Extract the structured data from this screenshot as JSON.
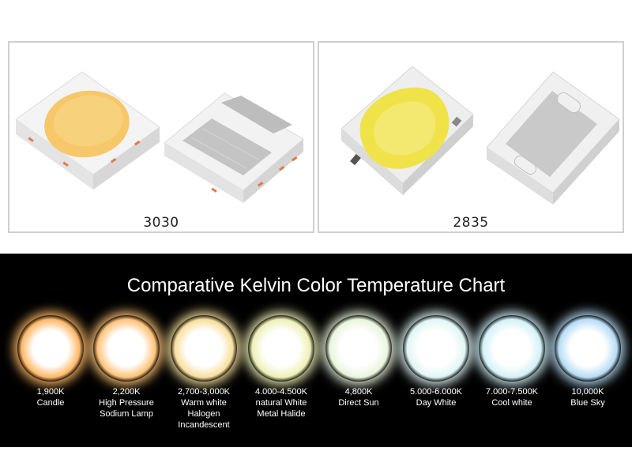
{
  "products": {
    "left_label": "3030",
    "right_label": "2835"
  },
  "chart": {
    "title": "Comparative Kelvin Color Temperature Chart",
    "swatches": [
      {
        "kelvin": "1,900K",
        "name": "Candle",
        "color": "#ffb866"
      },
      {
        "kelvin": "2,200K",
        "name": "High Pressure\nSodium Lamp",
        "color": "#ffc277"
      },
      {
        "kelvin": "2,700-3,000K",
        "name": "Warm white\nHalogen\nIncandescent",
        "color": "#f7df9c"
      },
      {
        "kelvin": "4.000-4.500K",
        "name": "natural White\nMetal Halide",
        "color": "#eef0b5"
      },
      {
        "kelvin": "4,800K",
        "name": "Direct Sun",
        "color": "#eaf4dc"
      },
      {
        "kelvin": "5.000-6.000K",
        "name": "Day White",
        "color": "#dff6f4"
      },
      {
        "kelvin": "7.000-7.500K",
        "name": "Cool white",
        "color": "#d2f1f8"
      },
      {
        "kelvin": "10,000K",
        "name": "Blue Sky",
        "color": "#b6dcf4"
      }
    ]
  }
}
